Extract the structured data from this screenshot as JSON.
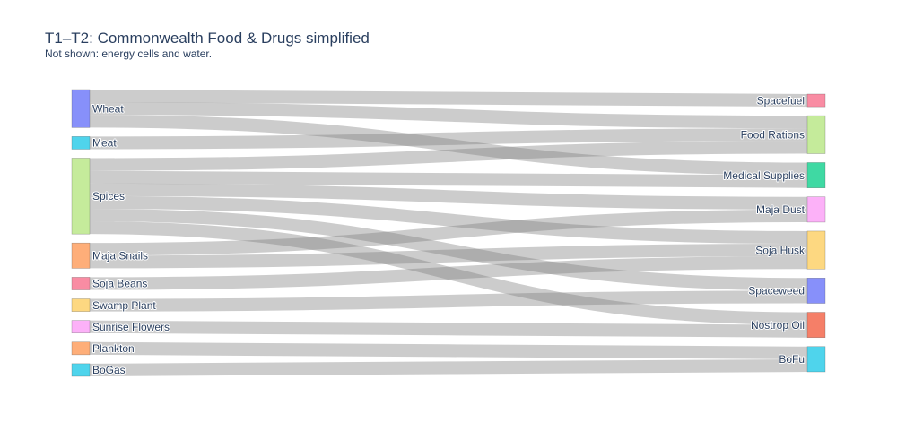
{
  "title": "T1–T2: Commonwealth Food & Drugs simplified",
  "subtitle": "Not shown: energy cells and water.",
  "chart_data": {
    "type": "sankey",
    "link_color": "#808080",
    "nodes": [
      {
        "id": "wheat",
        "label": "Wheat",
        "color": "#8790fa"
      },
      {
        "id": "meat",
        "label": "Meat",
        "color": "#4fd4ec"
      },
      {
        "id": "spices",
        "label": "Spices",
        "color": "#c5eb9b"
      },
      {
        "id": "maja_snails",
        "label": "Maja Snails",
        "color": "#feae79"
      },
      {
        "id": "soja_beans",
        "label": "Soja Beans",
        "color": "#f98ca3"
      },
      {
        "id": "swamp_plant",
        "label": "Swamp Plant",
        "color": "#fdd881"
      },
      {
        "id": "sunrise_flowers",
        "label": "Sunrise Flowers",
        "color": "#fcb1f8"
      },
      {
        "id": "plankton",
        "label": "Plankton",
        "color": "#feae79"
      },
      {
        "id": "bogas",
        "label": "BoGas",
        "color": "#4fd4ec"
      },
      {
        "id": "spacefuel",
        "label": "Spacefuel",
        "color": "#f98ca3"
      },
      {
        "id": "food_rations",
        "label": "Food Rations",
        "color": "#c5eb9b"
      },
      {
        "id": "medical_supplies",
        "label": "Medical Supplies",
        "color": "#3fd9a3"
      },
      {
        "id": "maja_dust",
        "label": "Maja Dust",
        "color": "#fcb1f8"
      },
      {
        "id": "soja_husk",
        "label": "Soja Husk",
        "color": "#fdd881"
      },
      {
        "id": "spaceweed",
        "label": "Spaceweed",
        "color": "#8790fa"
      },
      {
        "id": "nostrop_oil",
        "label": "Nostrop Oil",
        "color": "#f57f68"
      },
      {
        "id": "bofu",
        "label": "BoFu",
        "color": "#4fd4ec"
      }
    ],
    "links": [
      {
        "source": "wheat",
        "target": "spacefuel",
        "value": 1
      },
      {
        "source": "wheat",
        "target": "food_rations",
        "value": 1
      },
      {
        "source": "wheat",
        "target": "medical_supplies",
        "value": 1
      },
      {
        "source": "meat",
        "target": "food_rations",
        "value": 1
      },
      {
        "source": "spices",
        "target": "food_rations",
        "value": 1
      },
      {
        "source": "spices",
        "target": "medical_supplies",
        "value": 1
      },
      {
        "source": "spices",
        "target": "maja_dust",
        "value": 1
      },
      {
        "source": "spices",
        "target": "soja_husk",
        "value": 1
      },
      {
        "source": "spices",
        "target": "spaceweed",
        "value": 1
      },
      {
        "source": "spices",
        "target": "nostrop_oil",
        "value": 1
      },
      {
        "source": "maja_snails",
        "target": "maja_dust",
        "value": 1
      },
      {
        "source": "maja_snails",
        "target": "soja_husk",
        "value": 1
      },
      {
        "source": "soja_beans",
        "target": "soja_husk",
        "value": 1
      },
      {
        "source": "swamp_plant",
        "target": "spaceweed",
        "value": 1
      },
      {
        "source": "sunrise_flowers",
        "target": "nostrop_oil",
        "value": 1
      },
      {
        "source": "plankton",
        "target": "bofu",
        "value": 1
      },
      {
        "source": "bogas",
        "target": "bofu",
        "value": 1
      }
    ]
  }
}
